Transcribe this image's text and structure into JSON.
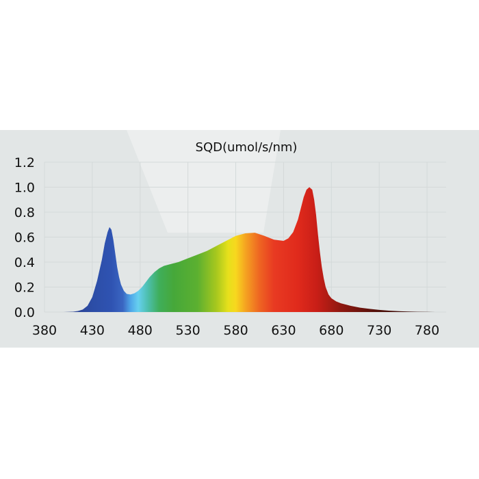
{
  "chart_data": {
    "type": "area",
    "title": "SQD(umol/s/nm)",
    "xlabel": "",
    "ylabel": "",
    "xlim": [
      380,
      800
    ],
    "ylim": [
      0,
      1.2
    ],
    "x_ticks": [
      "380",
      "430",
      "480",
      "530",
      "580",
      "630",
      "680",
      "730",
      "780"
    ],
    "y_ticks": [
      "0.0",
      "0.2",
      "0.4",
      "0.6",
      "0.8",
      "1.0",
      "1.2"
    ],
    "grid": true,
    "legend": "none",
    "fill": "spectral wavelength colors",
    "series": [
      {
        "x": [
          380,
          390,
          400,
          410,
          415,
          420,
          425,
          430,
          435,
          440,
          443,
          446,
          448,
          450,
          452,
          454,
          456,
          458,
          460,
          463,
          466,
          470,
          474,
          478,
          482,
          486,
          490,
          495,
          500,
          505,
          510,
          515,
          520,
          530,
          540,
          550,
          560,
          570,
          580,
          590,
          600,
          610,
          620,
          630,
          635,
          640,
          645,
          648,
          651,
          654,
          657,
          660,
          662,
          664,
          666,
          668,
          670,
          672,
          674,
          677,
          680,
          685,
          690,
          700,
          710,
          720,
          730,
          740,
          750,
          760,
          770,
          780,
          790,
          800
        ],
        "y": [
          0.0,
          0.0,
          0.0,
          0.003,
          0.008,
          0.02,
          0.05,
          0.12,
          0.25,
          0.42,
          0.55,
          0.64,
          0.68,
          0.66,
          0.58,
          0.47,
          0.36,
          0.28,
          0.22,
          0.17,
          0.145,
          0.14,
          0.15,
          0.17,
          0.2,
          0.24,
          0.28,
          0.32,
          0.35,
          0.37,
          0.38,
          0.39,
          0.4,
          0.43,
          0.46,
          0.49,
          0.53,
          0.57,
          0.61,
          0.63,
          0.635,
          0.61,
          0.58,
          0.57,
          0.59,
          0.64,
          0.74,
          0.83,
          0.92,
          0.98,
          1.0,
          0.98,
          0.9,
          0.78,
          0.62,
          0.48,
          0.36,
          0.27,
          0.2,
          0.14,
          0.11,
          0.085,
          0.07,
          0.05,
          0.035,
          0.025,
          0.017,
          0.011,
          0.007,
          0.004,
          0.002,
          0.001,
          0.0,
          0.0
        ]
      }
    ]
  }
}
